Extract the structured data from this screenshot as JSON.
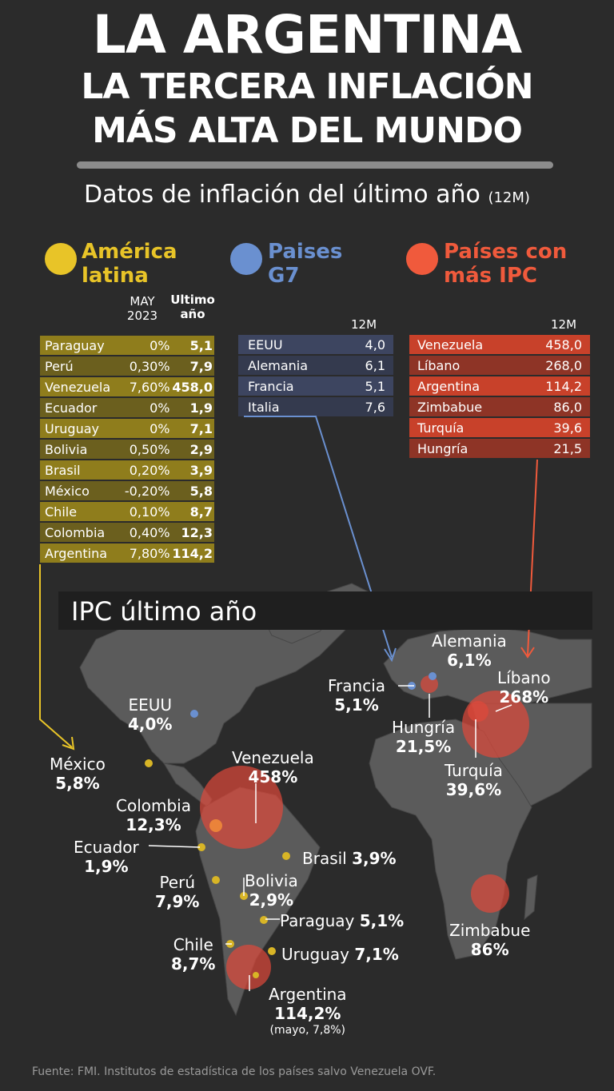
{
  "title": {
    "line1": "LA ARGENTINA",
    "line2": "LA TERCERA INFLACIÓN",
    "line3": "MÁS ALTA DEL MUNDO"
  },
  "subtitle": {
    "main": "Datos de inflación del último año",
    "suffix": "(12M)"
  },
  "colors": {
    "latam": "#e8c428",
    "g7": "#6a90d0",
    "ipc": "#f05a3c"
  },
  "latam": {
    "title_line1": "América",
    "title_line2": "latina",
    "col_may": "MAY\n2023",
    "col_ultimo": "Ultimo\naño",
    "rows": [
      {
        "country": "Paraguay",
        "may": "0%",
        "ultimo": "5,1"
      },
      {
        "country": "Perú",
        "may": "0,30%",
        "ultimo": "7,9"
      },
      {
        "country": "Venezuela",
        "may": "7,60%",
        "ultimo": "458,0"
      },
      {
        "country": "Ecuador",
        "may": "0%",
        "ultimo": "1,9"
      },
      {
        "country": "Uruguay",
        "may": "0%",
        "ultimo": "7,1"
      },
      {
        "country": "Bolivia",
        "may": "0,50%",
        "ultimo": "2,9"
      },
      {
        "country": "Brasil",
        "may": "0,20%",
        "ultimo": "3,9"
      },
      {
        "country": "México",
        "may": "-0,20%",
        "ultimo": "5,8"
      },
      {
        "country": "Chile",
        "may": "0,10%",
        "ultimo": "8,7"
      },
      {
        "country": "Colombia",
        "may": "0,40%",
        "ultimo": "12,3"
      },
      {
        "country": "Argentina",
        "may": "7,80%",
        "ultimo": "114,2"
      }
    ]
  },
  "g7": {
    "title_line1": "Paises",
    "title_line2": "G7",
    "col_12m": "12M",
    "rows": [
      {
        "country": "EEUU",
        "value": "4,0"
      },
      {
        "country": "Alemania",
        "value": "6,1"
      },
      {
        "country": "Francia",
        "value": "5,1"
      },
      {
        "country": "Italia",
        "value": "7,6"
      }
    ]
  },
  "ipc": {
    "title_line1": "Países con",
    "title_line2": "más IPC",
    "col_12m": "12M",
    "rows": [
      {
        "country": "Venezuela",
        "value": "458,0"
      },
      {
        "country": "Líbano",
        "value": "268,0"
      },
      {
        "country": "Argentina",
        "value": "114,2"
      },
      {
        "country": "Zimbabue",
        "value": "86,0"
      },
      {
        "country": "Turquía",
        "value": "39,6"
      },
      {
        "country": "Hungría",
        "value": "21,5"
      }
    ]
  },
  "map": {
    "header": "IPC último año",
    "labels": {
      "alemania": {
        "name": "Alemania",
        "value": "6,1%"
      },
      "libano": {
        "name": "Líbano",
        "value": "268%"
      },
      "francia": {
        "name": "Francia",
        "value": "5,1%"
      },
      "hungria": {
        "name": "Hungría",
        "value": "21,5%"
      },
      "turquia": {
        "name": "Turquía",
        "value": "39,6%"
      },
      "eeuu": {
        "name": "EEUU",
        "value": "4,0%"
      },
      "mexico": {
        "name": "México",
        "value": "5,8%"
      },
      "venezuela": {
        "name": "Venezuela",
        "value": "458%"
      },
      "colombia": {
        "name": "Colombia",
        "value": "12,3%"
      },
      "ecuador": {
        "name": "Ecuador",
        "value": "1,9%"
      },
      "brasil": {
        "name": "Brasil",
        "value": "3,9%"
      },
      "peru": {
        "name": "Perú",
        "value": "7,9%"
      },
      "bolivia": {
        "name": "Bolivia",
        "value": "2,9%"
      },
      "paraguay": {
        "name": "Paraguay",
        "value": "5,1%"
      },
      "chile": {
        "name": "Chile",
        "value": "8,7%"
      },
      "uruguay": {
        "name": "Uruguay",
        "value": "7,1%"
      },
      "zimbabue": {
        "name": "Zimbabue",
        "value": "86%"
      },
      "argentina": {
        "name": "Argentina",
        "value": "114,2%",
        "note": "(mayo, 7,8%)"
      }
    }
  },
  "footer": "Fuente: FMI. Institutos de estadística de los países salvo Venezuela OVF."
}
